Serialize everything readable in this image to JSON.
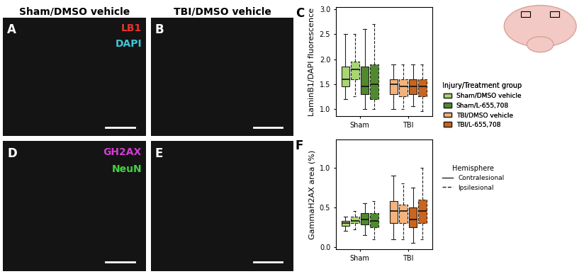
{
  "image_panels": [
    {
      "label": "A",
      "title": "Sham/DMSO vehicle",
      "stains": [
        {
          "text": "LB1",
          "color": "#e8322a"
        },
        {
          "text": "DAPI",
          "color": "#3fc6d8"
        }
      ]
    },
    {
      "label": "B",
      "title": "TBI/DMSO vehicle"
    },
    {
      "label": "D",
      "stains": [
        {
          "text": "GH2AX",
          "color": "#d23cd2"
        },
        {
          "text": "NeuN",
          "color": "#44d044"
        }
      ]
    },
    {
      "label": "E"
    }
  ],
  "legend_groups": {
    "title": "Injury/Treatment group",
    "entries": [
      {
        "name": "Sham/DMSO vehicle",
        "color": "#a8d672"
      },
      {
        "name": "Sham/L-655,708",
        "color": "#4f8a2e"
      },
      {
        "name": "TBI/DMSO vehicle",
        "color": "#f5b27a"
      },
      {
        "name": "TBI/L-655,708",
        "color": "#c9651f"
      }
    ]
  },
  "legend_hemisphere": {
    "title": "Hemisphere",
    "entries": [
      {
        "name": "Contralesional",
        "line_style": "solid"
      },
      {
        "name": "Ipsilesional",
        "line_style": "dashed"
      }
    ]
  },
  "chart_data": [
    {
      "type": "box",
      "panel": "C",
      "y_label": "LaminB1/DAPI fluorescence",
      "grid": false,
      "categories": [
        "Sham",
        "TBI"
      ],
      "ylim": [
        0.85,
        3.05
      ],
      "yticks": [
        {
          "value": 1.0,
          "label": "1.0"
        },
        {
          "value": 1.5,
          "label": "1.5"
        },
        {
          "value": 2.0,
          "label": "2.0"
        },
        {
          "value": 2.5,
          "label": "2.5"
        },
        {
          "value": 3.0,
          "label": "3.0"
        }
      ],
      "boxes": [
        {
          "category": "Sham",
          "group": "Sham/DMSO vehicle",
          "hemisphere": "Contralesional",
          "whislo": 1.2,
          "q1": 1.45,
          "med": 1.6,
          "q3": 1.85,
          "whishi": 2.5
        },
        {
          "category": "Sham",
          "group": "Sham/DMSO vehicle",
          "hemisphere": "Ipsilesional",
          "whislo": 1.25,
          "q1": 1.6,
          "med": 1.8,
          "q3": 1.95,
          "whishi": 2.5
        },
        {
          "category": "Sham",
          "group": "Sham/L-655,708",
          "hemisphere": "Contralesional",
          "whislo": 1.0,
          "q1": 1.3,
          "med": 1.45,
          "q3": 1.85,
          "whishi": 2.6
        },
        {
          "category": "Sham",
          "group": "Sham/L-655,708",
          "hemisphere": "Ipsilesional",
          "whislo": 1.0,
          "q1": 1.2,
          "med": 1.5,
          "q3": 1.9,
          "whishi": 2.7
        },
        {
          "category": "TBI",
          "group": "TBI/DMSO vehicle",
          "hemisphere": "Contralesional",
          "whislo": 1.0,
          "q1": 1.3,
          "med": 1.5,
          "q3": 1.6,
          "whishi": 1.9
        },
        {
          "category": "TBI",
          "group": "TBI/DMSO vehicle",
          "hemisphere": "Ipsilesional",
          "whislo": 1.0,
          "q1": 1.25,
          "med": 1.45,
          "q3": 1.6,
          "whishi": 1.9
        },
        {
          "category": "TBI",
          "group": "TBI/L-655,708",
          "hemisphere": "Contralesional",
          "whislo": 1.05,
          "q1": 1.3,
          "med": 1.45,
          "q3": 1.6,
          "whishi": 1.9
        },
        {
          "category": "TBI",
          "group": "TBI/L-655,708",
          "hemisphere": "Ipsilesional",
          "whislo": 0.95,
          "q1": 1.25,
          "med": 1.45,
          "q3": 1.6,
          "whishi": 1.9
        }
      ]
    },
    {
      "type": "box",
      "panel": "F",
      "y_label": "GammaH2AX area (%)",
      "grid": false,
      "categories": [
        "Sham",
        "TBI"
      ],
      "ylim": [
        -0.03,
        1.35
      ],
      "yticks": [
        {
          "value": 0.0,
          "label": "0.0"
        },
        {
          "value": 0.5,
          "label": "0.5"
        },
        {
          "value": 1.0,
          "label": "1.0"
        }
      ],
      "boxes": [
        {
          "category": "Sham",
          "group": "Sham/DMSO vehicle",
          "hemisphere": "Contralesional",
          "whislo": 0.2,
          "q1": 0.27,
          "med": 0.3,
          "q3": 0.33,
          "whishi": 0.38
        },
        {
          "category": "Sham",
          "group": "Sham/DMSO vehicle",
          "hemisphere": "Ipsilesional",
          "whislo": 0.22,
          "q1": 0.3,
          "med": 0.33,
          "q3": 0.38,
          "whishi": 0.45
        },
        {
          "category": "Sham",
          "group": "Sham/L-655,708",
          "hemisphere": "Contralesional",
          "whislo": 0.15,
          "q1": 0.28,
          "med": 0.35,
          "q3": 0.43,
          "whishi": 0.55
        },
        {
          "category": "Sham",
          "group": "Sham/L-655,708",
          "hemisphere": "Ipsilesional",
          "whislo": 0.1,
          "q1": 0.25,
          "med": 0.33,
          "q3": 0.43,
          "whishi": 0.58
        },
        {
          "category": "TBI",
          "group": "TBI/DMSO vehicle",
          "hemisphere": "Contralesional",
          "whislo": 0.1,
          "q1": 0.3,
          "med": 0.45,
          "q3": 0.58,
          "whishi": 0.9
        },
        {
          "category": "TBI",
          "group": "TBI/DMSO vehicle",
          "hemisphere": "Ipsilesional",
          "whislo": 0.1,
          "q1": 0.3,
          "med": 0.45,
          "q3": 0.53,
          "whishi": 0.8
        },
        {
          "category": "TBI",
          "group": "TBI/L-655,708",
          "hemisphere": "Contralesional",
          "whislo": 0.05,
          "q1": 0.25,
          "med": 0.35,
          "q3": 0.5,
          "whishi": 0.75
        },
        {
          "category": "TBI",
          "group": "TBI/L-655,708",
          "hemisphere": "Ipsilesional",
          "whislo": 0.1,
          "q1": 0.3,
          "med": 0.45,
          "q3": 0.6,
          "whishi": 1.0
        }
      ]
    }
  ]
}
